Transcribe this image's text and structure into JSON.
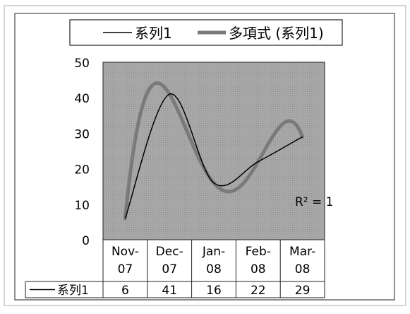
{
  "chart_data": {
    "type": "line",
    "categories": [
      "Nov-07",
      "Dec-07",
      "Jan-08",
      "Feb-08",
      "Mar-08"
    ],
    "category_lines": [
      [
        "Nov-",
        "07"
      ],
      [
        "Dec-",
        "07"
      ],
      [
        "Jan-",
        "08"
      ],
      [
        "Feb-",
        "08"
      ],
      [
        "Mar-",
        "08"
      ]
    ],
    "series": [
      {
        "name": "系列1",
        "values": [
          6,
          41,
          16,
          22,
          29
        ]
      }
    ],
    "trendline": {
      "name": "多項式 (系列1)",
      "type": "polynomial",
      "order": 4,
      "r2_label": "R² = 1"
    },
    "legend": {
      "position": "top",
      "entries": [
        "系列1",
        "多項式 (系列1)"
      ]
    },
    "data_table": {
      "row_label": "系列1",
      "values": [
        "6",
        "41",
        "16",
        "22",
        "29"
      ]
    },
    "yticks": [
      "0",
      "10",
      "20",
      "30",
      "40",
      "50"
    ],
    "ylim": [
      0,
      50
    ],
    "grid": false,
    "colors": {
      "plot_area": "#a8a8a8",
      "series_line": "#000000",
      "trendline": "#7a7a7a",
      "frame": "#222222",
      "page_border": "#c8c8c8"
    }
  }
}
